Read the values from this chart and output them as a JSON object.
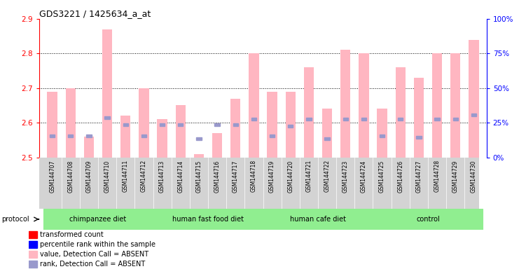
{
  "title": "GDS3221 / 1425634_a_at",
  "samples": [
    "GSM144707",
    "GSM144708",
    "GSM144709",
    "GSM144710",
    "GSM144711",
    "GSM144712",
    "GSM144713",
    "GSM144714",
    "GSM144715",
    "GSM144716",
    "GSM144717",
    "GSM144718",
    "GSM144719",
    "GSM144720",
    "GSM144721",
    "GSM144722",
    "GSM144723",
    "GSM144724",
    "GSM144725",
    "GSM144726",
    "GSM144727",
    "GSM144728",
    "GSM144729",
    "GSM144730"
  ],
  "transformed_count": [
    2.69,
    2.7,
    2.56,
    2.87,
    2.62,
    2.7,
    2.61,
    2.65,
    2.51,
    2.57,
    2.67,
    2.8,
    2.69,
    2.69,
    2.76,
    2.64,
    2.81,
    2.8,
    2.64,
    2.76,
    2.73,
    2.8,
    2.8,
    2.84
  ],
  "percentile_rank": [
    15,
    15,
    15,
    28,
    23,
    15,
    23,
    23,
    13,
    23,
    23,
    27,
    15,
    22,
    27,
    13,
    27,
    27,
    15,
    27,
    14,
    27,
    27,
    30
  ],
  "groups": [
    {
      "label": "chimpanzee diet",
      "start": 0,
      "end": 6,
      "color": "#90EE90"
    },
    {
      "label": "human fast food diet",
      "start": 6,
      "end": 12,
      "color": "#90EE90"
    },
    {
      "label": "human cafe diet",
      "start": 12,
      "end": 18,
      "color": "#90EE90"
    },
    {
      "label": "control",
      "start": 18,
      "end": 24,
      "color": "#90EE90"
    }
  ],
  "ylim_left": [
    2.5,
    2.9
  ],
  "ylim_right": [
    0,
    100
  ],
  "yticks_left": [
    2.5,
    2.6,
    2.7,
    2.8,
    2.9
  ],
  "yticks_right": [
    0,
    25,
    50,
    75,
    100
  ],
  "bar_color_absent": "#FFB6C1",
  "rank_color_absent": "#9999CC",
  "bar_color_present": "#FF0000",
  "rank_color_present": "#0000FF",
  "background_plot": "#FFFFFF",
  "background_xticklabels": "#D3D3D3",
  "grid_lines": [
    2.6,
    2.7,
    2.8
  ],
  "bar_width": 0.55
}
